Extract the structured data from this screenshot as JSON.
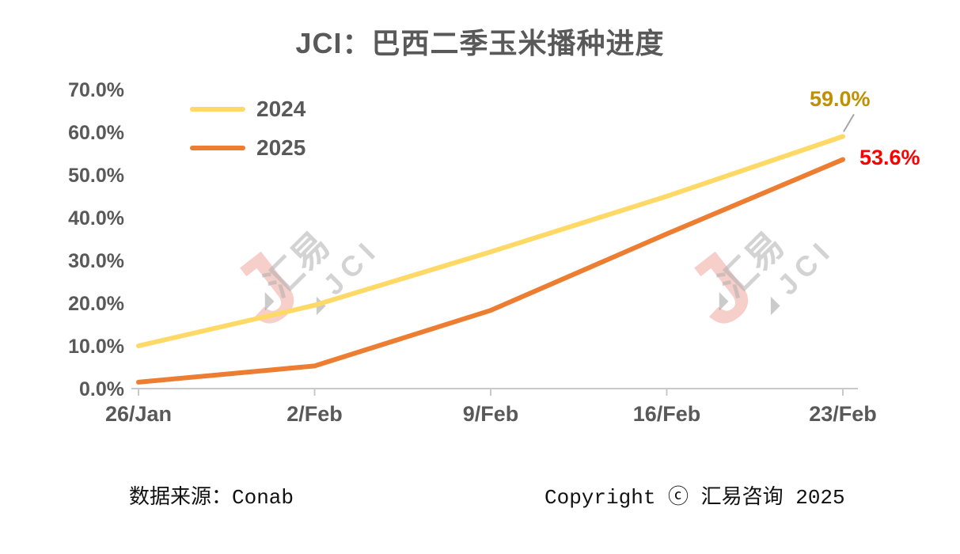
{
  "chart_data": {
    "type": "line",
    "title": "JCI：巴西二季玉米播种进度",
    "categories": [
      "26/Jan",
      "2/Feb",
      "9/Feb",
      "16/Feb",
      "23/Feb"
    ],
    "series": [
      {
        "name": "2024",
        "color": "#FFD966",
        "values": [
          10.0,
          19.5,
          32.0,
          45.0,
          59.0
        ],
        "end_label": "59.0%",
        "end_label_color": "#BF9000",
        "leader_line": true
      },
      {
        "name": "2025",
        "color": "#ED7D31",
        "values": [
          1.5,
          5.3,
          18.3,
          36.2,
          53.6
        ],
        "end_label": "53.6%",
        "end_label_color": "#FF0000",
        "leader_line": false
      }
    ],
    "xlabel": "",
    "ylabel": "",
    "ylim": [
      0,
      70
    ],
    "ytick_step": 10,
    "ytick_labels": [
      "0.0%",
      "10.0%",
      "20.0%",
      "30.0%",
      "40.0%",
      "50.0%",
      "60.0%",
      "70.0%"
    ],
    "legend_position": "top-left",
    "grid": false,
    "axis_color": "#C9C9C9",
    "text_color": "#595959",
    "leader_line_color": "#A6A6A6"
  },
  "watermark": {
    "line1": "汇易",
    "line2": "JCI",
    "logo": "J",
    "triangle": "◢"
  },
  "footer": {
    "source": "数据来源：Conab",
    "copyright": "Copyright ⓒ 汇易咨询 2025"
  }
}
